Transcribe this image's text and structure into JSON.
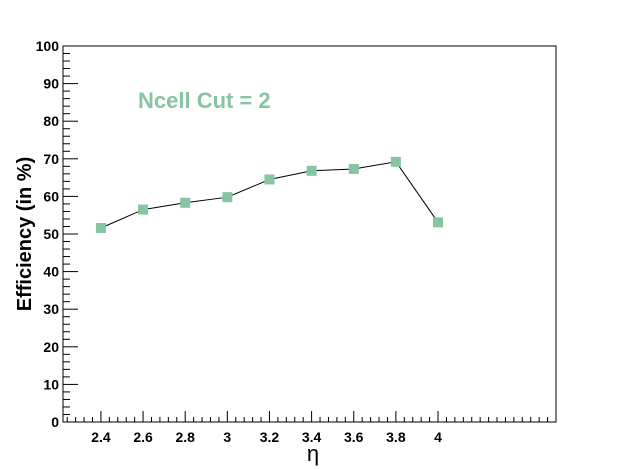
{
  "chart_data": {
    "type": "line",
    "annotation": "Ncell Cut = 2",
    "xlabel": "η",
    "ylabel": "Efficiency (in %)",
    "xlim": [
      2.22,
      4.56
    ],
    "ylim": [
      0,
      100
    ],
    "x_ticks": [
      2.4,
      2.6,
      2.8,
      3,
      3.2,
      3.4,
      3.6,
      3.8,
      4
    ],
    "x_tick_labels": [
      "2.4",
      "2.6",
      "2.8",
      "3",
      "3.2",
      "3.4",
      "3.6",
      "3.8",
      "4"
    ],
    "y_ticks": [
      0,
      10,
      20,
      30,
      40,
      50,
      60,
      70,
      80,
      90,
      100
    ],
    "y_tick_labels": [
      "0",
      "10",
      "20",
      "30",
      "40",
      "50",
      "60",
      "70",
      "80",
      "90",
      "100"
    ],
    "grid": false,
    "series": [
      {
        "x": [
          2.4,
          2.6,
          2.8,
          3.0,
          3.2,
          3.4,
          3.6,
          3.8,
          4.0
        ],
        "y": [
          51.6,
          56.5,
          58.3,
          59.8,
          64.5,
          66.8,
          67.3,
          69.2,
          53.1
        ],
        "color": "#86c4a2"
      }
    ],
    "annotation_color": "#86c4a2"
  }
}
